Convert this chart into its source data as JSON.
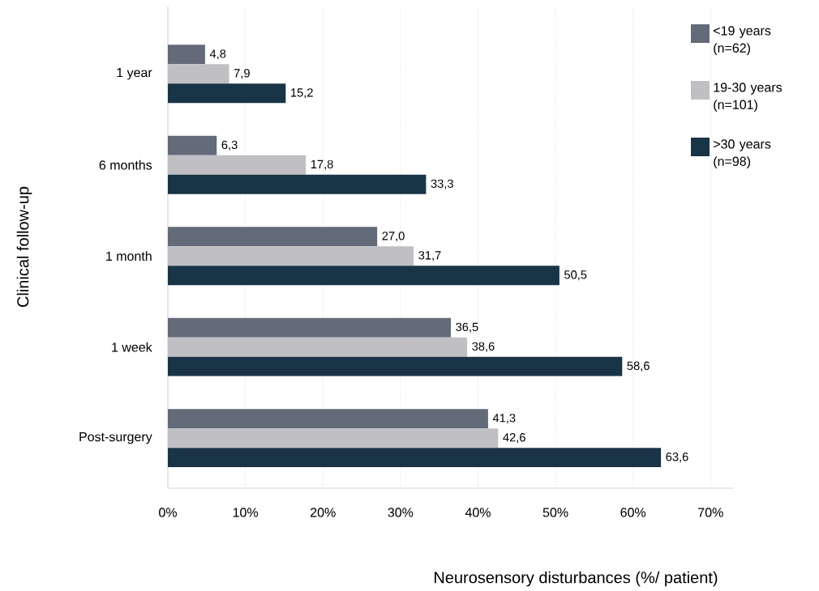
{
  "chart_data": {
    "type": "bar",
    "orientation": "horizontal",
    "categories": [
      "1 year",
      "6 months",
      "1 month",
      "1 week",
      "Post-surgery"
    ],
    "series": [
      {
        "name": "<19 years (n=62)",
        "color": "#636a78",
        "values": [
          4.8,
          6.3,
          27.0,
          36.5,
          41.3
        ],
        "value_labels": [
          "4,8",
          "6,3",
          "27,0",
          "36,5",
          "41,3"
        ]
      },
      {
        "name": "19-30 years (n=101)",
        "color": "#c0bfc4",
        "values": [
          7.9,
          17.8,
          31.7,
          38.6,
          42.6
        ],
        "value_labels": [
          "7,9",
          "17,8",
          "31,7",
          "38,6",
          "42,6"
        ]
      },
      {
        "name": ">30 years (n=98)",
        "color": "#1a3447",
        "values": [
          15.2,
          33.3,
          50.5,
          58.6,
          63.6
        ],
        "value_labels": [
          "15,2",
          "33,3",
          "50,5",
          "58,6",
          "63,6"
        ]
      }
    ],
    "xlim": [
      0,
      73
    ],
    "xticks": [
      {
        "value": 0,
        "label": "0%"
      },
      {
        "value": 10,
        "label": "10%"
      },
      {
        "value": 20,
        "label": "20%"
      },
      {
        "value": 30,
        "label": "30%"
      },
      {
        "value": 40,
        "label": "40%"
      },
      {
        "value": 50,
        "label": "50%"
      },
      {
        "value": 60,
        "label": "60%"
      },
      {
        "value": 70,
        "label": "70%"
      }
    ],
    "xlabel": "Neurosensory disturbances (%/ patient)",
    "ylabel": "Clinical follow-up",
    "grid": "x",
    "legend": "top right"
  }
}
